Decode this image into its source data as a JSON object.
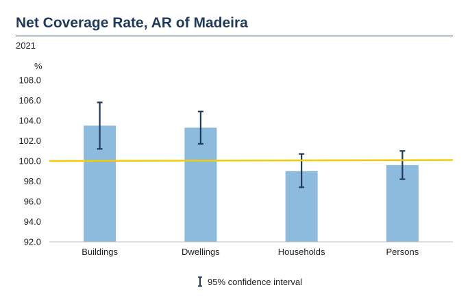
{
  "header": {
    "title": "Net Coverage Rate, AR of Madeira",
    "subtitle": "2021"
  },
  "legend": {
    "label": "95% confidence interval"
  },
  "colors": {
    "bar": "#8cbbde",
    "error": "#1f3a5c",
    "refline": "#f2cc0c",
    "axis": "#bfbfbf",
    "title": "#1f3a5c"
  },
  "chart_data": {
    "type": "bar",
    "title": "Net Coverage Rate, AR of Madeira",
    "ylabel": "%",
    "categories": [
      "Buildings",
      "Dwellings",
      "Households",
      "Persons"
    ],
    "values": [
      103.5,
      103.3,
      99.0,
      99.6
    ],
    "error_low": [
      101.2,
      101.7,
      97.4,
      98.2
    ],
    "error_high": [
      105.8,
      104.9,
      100.7,
      101.0
    ],
    "reference_line": 100.0,
    "ylim": [
      92.0,
      108.0
    ],
    "yticks": [
      "92.0",
      "94.0",
      "96.0",
      "98.0",
      "100.0",
      "102.0",
      "104.0",
      "106.0",
      "108.0"
    ],
    "grid": false,
    "legend": "bottom-center"
  }
}
